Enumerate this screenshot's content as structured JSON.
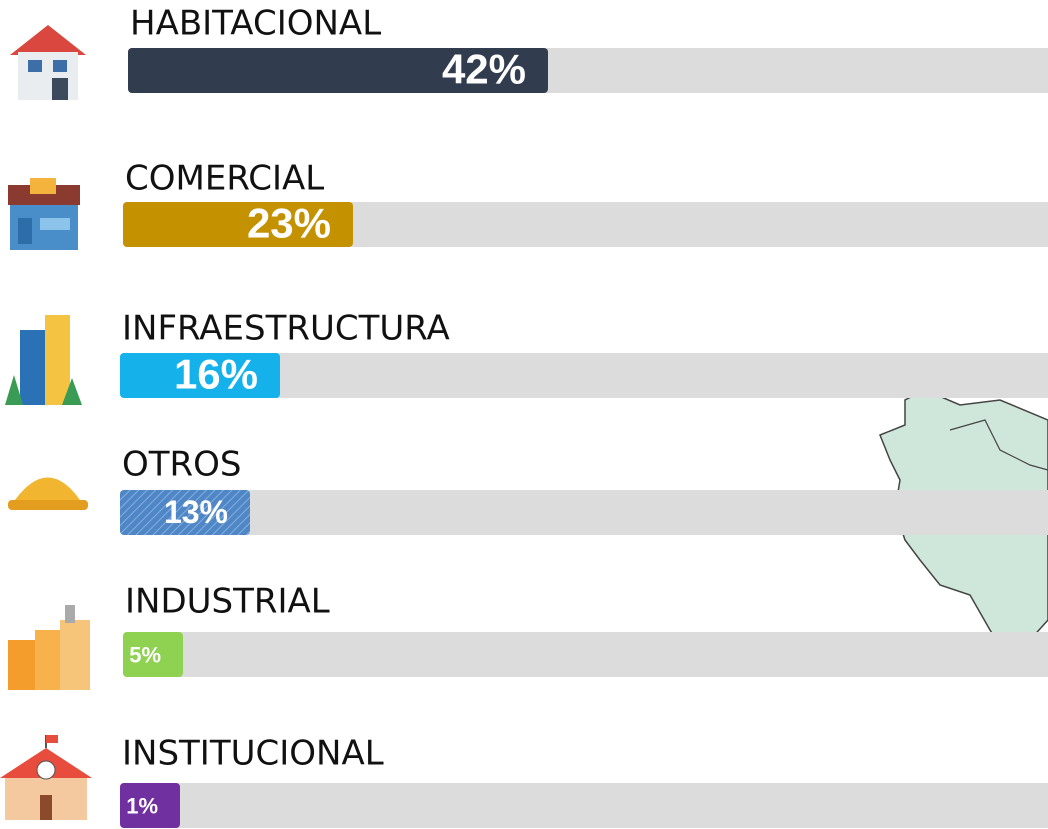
{
  "chart_data": {
    "type": "bar",
    "categories": [
      "HABITACIONAL",
      "COMERCIAL",
      "INFRAESTRUCTURA",
      "OTROS",
      "INDUSTRIAL",
      "INSTITUCIONAL"
    ],
    "values": [
      42,
      23,
      16,
      13,
      5,
      1
    ],
    "value_labels": [
      "42%",
      "23%",
      "16%",
      "13%",
      "5%",
      "1%"
    ],
    "colors": [
      "#323c4f",
      "#c49100",
      "#14b1eb",
      "#4f86c6",
      "#8fd150",
      "#7030a0"
    ],
    "xlim": [
      0,
      100
    ]
  }
}
